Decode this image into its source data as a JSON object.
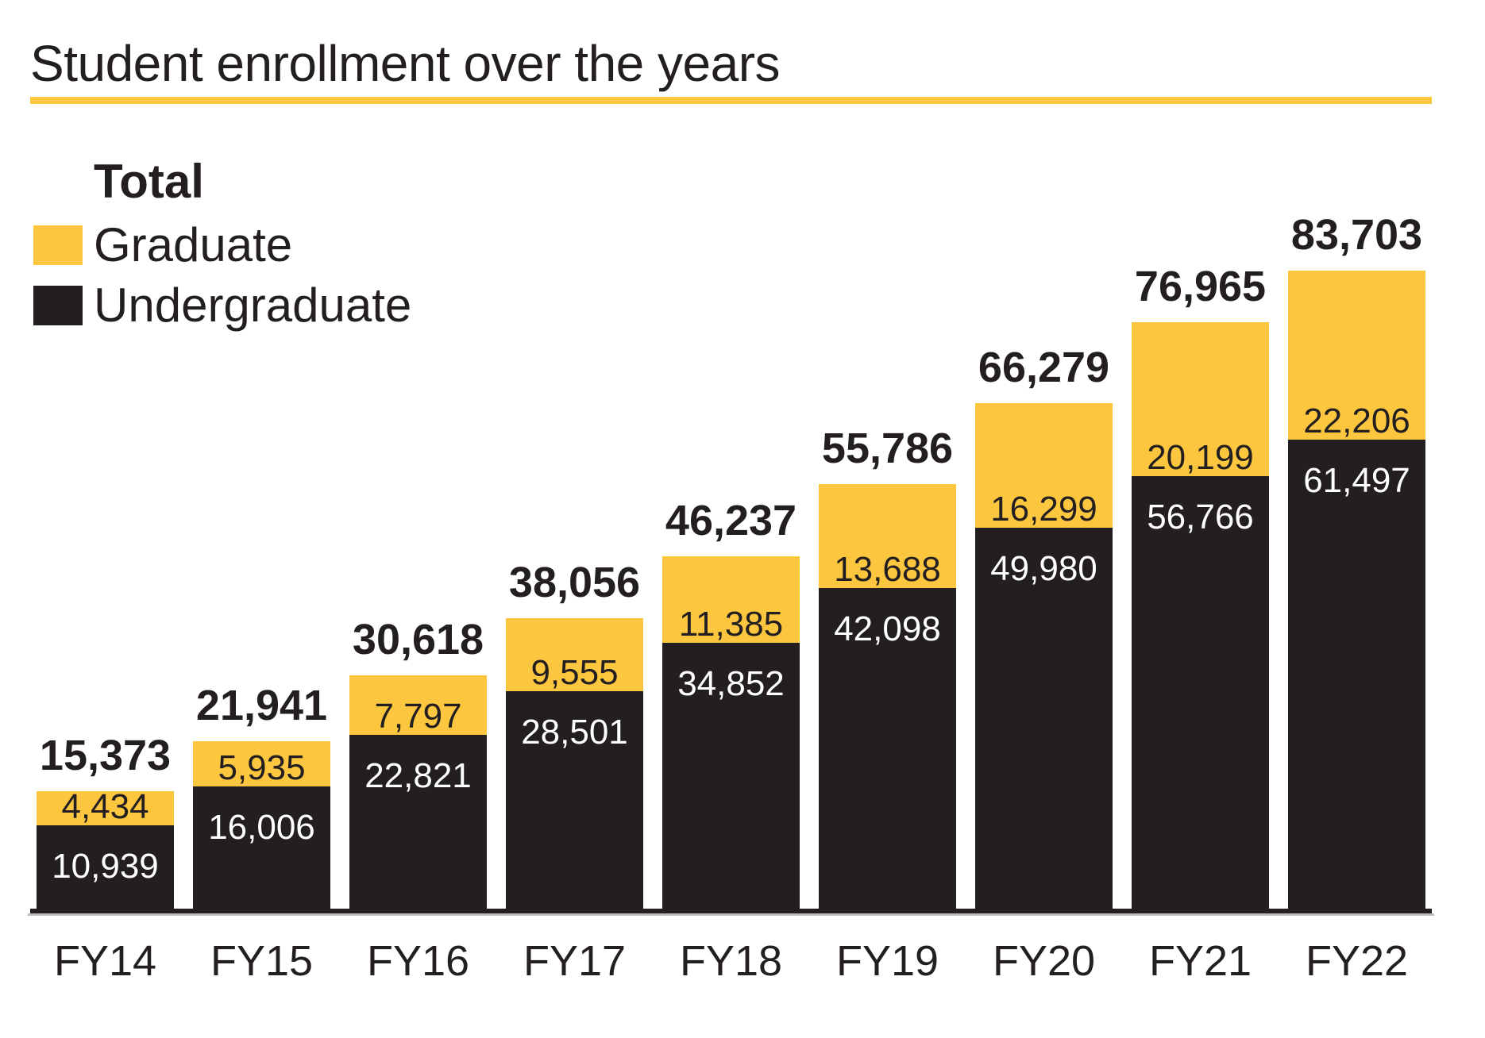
{
  "title": "Student enrollment over the years",
  "accent_color": "#FCC63F",
  "bar_color": "#231F20",
  "legend": {
    "total_label": "Total",
    "items": [
      {
        "label": "Graduate",
        "color": "#FCC63F"
      },
      {
        "label": "Undergraduate",
        "color": "#231F20"
      }
    ]
  },
  "chart_data": {
    "type": "bar",
    "stacked": true,
    "title": "Student enrollment over the years",
    "categories": [
      "FY14",
      "FY15",
      "FY16",
      "FY17",
      "FY18",
      "FY19",
      "FY20",
      "FY21",
      "FY22"
    ],
    "series": [
      {
        "name": "Graduate",
        "color": "#FCC63F",
        "values": [
          4434,
          5935,
          7797,
          9555,
          11385,
          13688,
          16299,
          20199,
          22206
        ]
      },
      {
        "name": "Undergraduate",
        "color": "#231F20",
        "values": [
          10939,
          16006,
          22821,
          28501,
          34852,
          42098,
          49980,
          56766,
          61497
        ]
      }
    ],
    "totals": [
      15373,
      21941,
      30618,
      38056,
      46237,
      55786,
      66279,
      76965,
      83703
    ],
    "value_format": "comma-thousands",
    "ylim": [
      0,
      83703
    ],
    "grid": false,
    "legend_position": "top-left",
    "xlabel": "",
    "ylabel": ""
  }
}
